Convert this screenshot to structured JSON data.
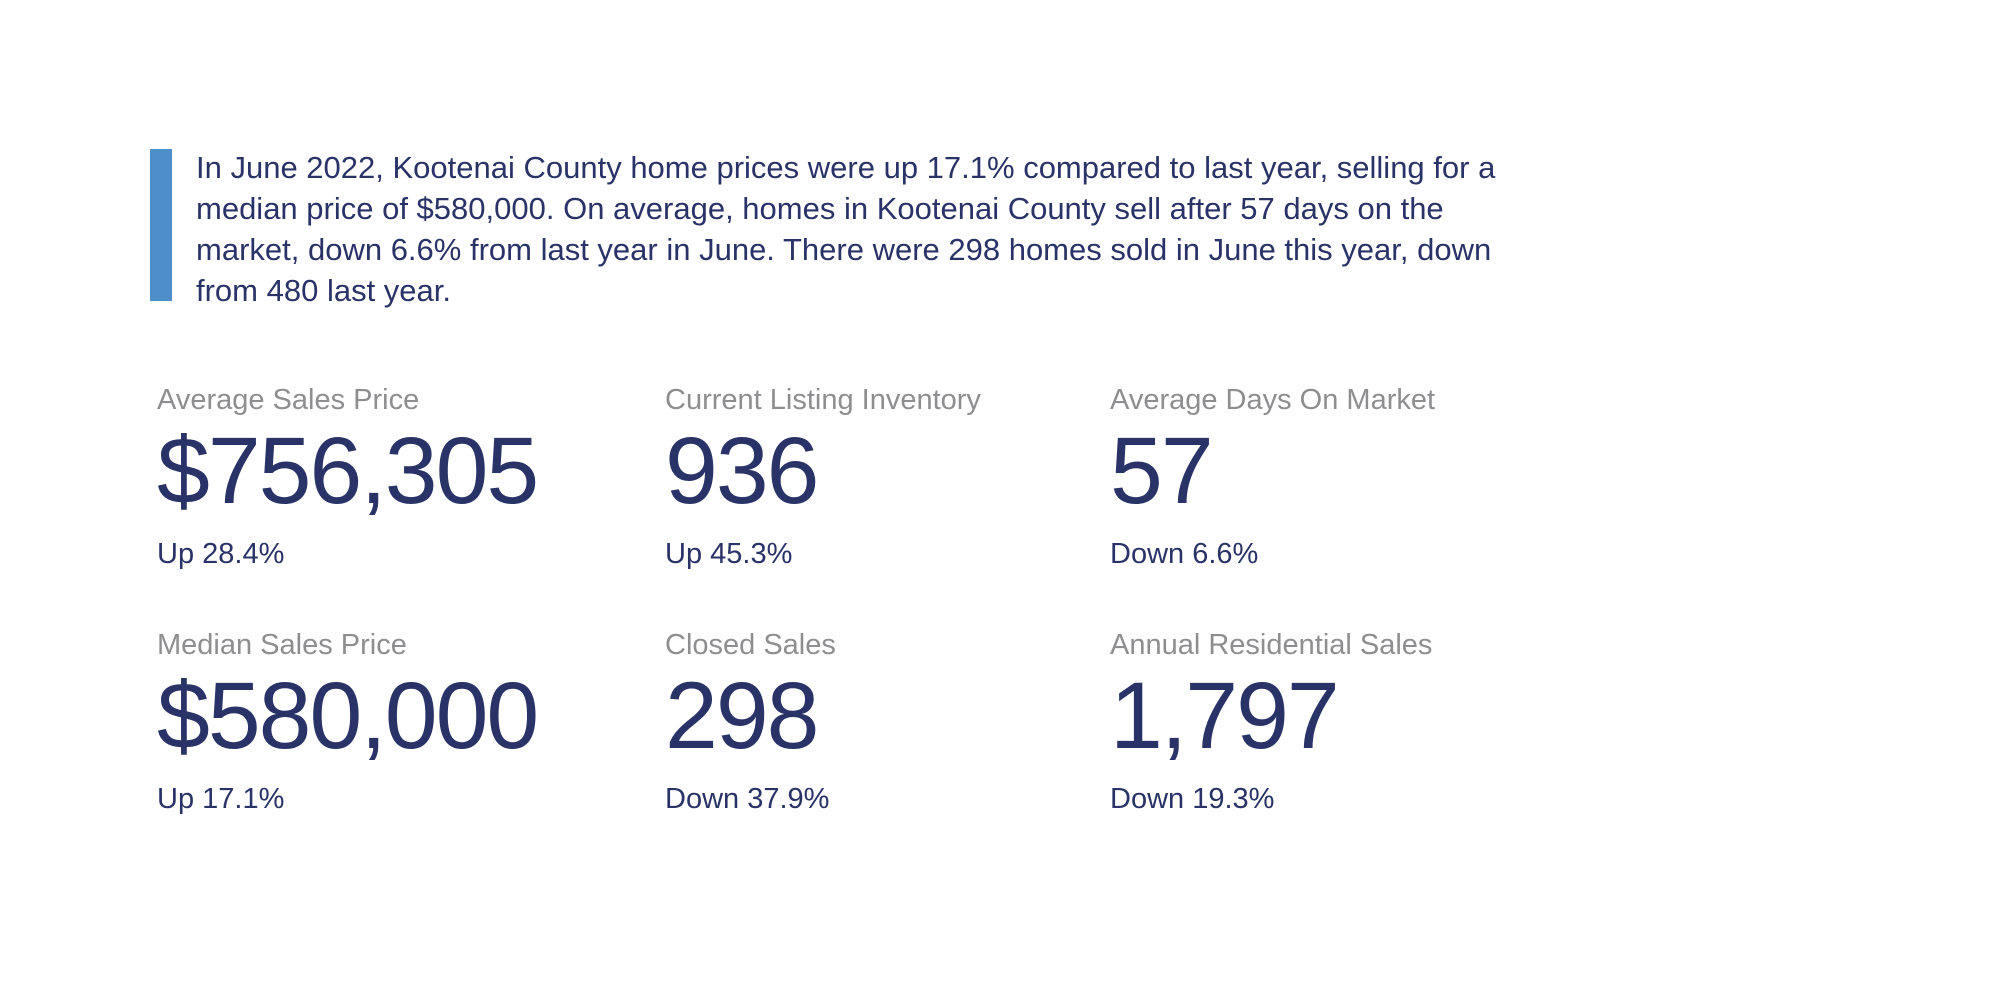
{
  "summary": {
    "text": "In June 2022, Kootenai County home prices were up 17.1% compared to last year, selling for a median price of $580,000. On average, homes in Kootenai County sell after 57 days on the market, down 6.6% from last year in June. There were 298 homes sold in June this year, down from 480 last year."
  },
  "stats": [
    {
      "label": "Average Sales Price",
      "value": "$756,305",
      "change": "Up 28.4%",
      "direction": "up"
    },
    {
      "label": "Current Listing Inventory",
      "value": "936",
      "change": "Up 45.3%",
      "direction": "up"
    },
    {
      "label": "Average Days On Market",
      "value": "57",
      "change": "Down 6.6%",
      "direction": "down"
    },
    {
      "label": "Median Sales Price",
      "value": "$580,000",
      "change": "Up 17.1%",
      "direction": "up"
    },
    {
      "label": "Closed Sales",
      "value": "298",
      "change": "Down 37.9%",
      "direction": "down"
    },
    {
      "label": "Annual Residential Sales",
      "value": "1,797",
      "change": "Down 19.3%",
      "direction": "down"
    }
  ],
  "colors": {
    "navy": "#293367",
    "gray": "#8E8E90",
    "accent_blue": "#4E8FC9",
    "background": "#FFFFFF"
  }
}
